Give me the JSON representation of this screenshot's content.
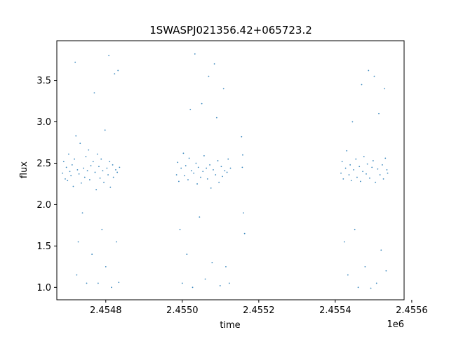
{
  "chart_data": {
    "type": "scatter",
    "title": "1SWASPJ021356.42+065723.2",
    "xlabel": "time",
    "ylabel": "flux",
    "x_offset_label": "1e6",
    "xlim": [
      2454672,
      2455580
    ],
    "ylim": [
      0.85,
      3.98
    ],
    "x_ticks": [
      2454800,
      2455000,
      2455200,
      2455400,
      2455600
    ],
    "x_tick_labels": [
      "2.4548",
      "2.4550",
      "2.4552",
      "2.4554",
      "2.4556"
    ],
    "y_ticks": [
      1.0,
      1.5,
      2.0,
      2.5,
      3.0,
      3.5
    ],
    "y_tick_labels": [
      "1.0",
      "1.5",
      "2.0",
      "2.5",
      "3.0",
      "3.5"
    ],
    "grid": false,
    "marker_color": "#1f77b4",
    "series": [
      {
        "points": [
          [
            2454687,
            2.38
          ],
          [
            2454690,
            2.52
          ],
          [
            2454694,
            2.31
          ],
          [
            2454697,
            2.45
          ],
          [
            2454700,
            2.29
          ],
          [
            2454703,
            2.61
          ],
          [
            2454706,
            2.4
          ],
          [
            2454709,
            2.35
          ],
          [
            2454712,
            2.48
          ],
          [
            2454715,
            2.22
          ],
          [
            2454718,
            2.55
          ],
          [
            2454720,
            3.72
          ],
          [
            2454722,
            2.83
          ],
          [
            2454724,
            1.15
          ],
          [
            2454726,
            2.42
          ],
          [
            2454728,
            1.55
          ],
          [
            2454730,
            2.37
          ],
          [
            2454733,
            2.74
          ],
          [
            2454736,
            2.26
          ],
          [
            2454739,
            1.9
          ],
          [
            2454742,
            2.44
          ],
          [
            2454745,
            2.33
          ],
          [
            2454748,
            2.58
          ],
          [
            2454750,
            1.05
          ],
          [
            2454752,
            2.41
          ],
          [
            2454755,
            2.66
          ],
          [
            2454758,
            2.3
          ],
          [
            2454761,
            2.47
          ],
          [
            2454764,
            1.4
          ],
          [
            2454767,
            2.52
          ],
          [
            2454770,
            3.35
          ],
          [
            2454772,
            2.39
          ],
          [
            2454775,
            2.18
          ],
          [
            2454778,
            2.61
          ],
          [
            2454780,
            1.05
          ],
          [
            2454782,
            2.46
          ],
          [
            2454785,
            2.32
          ],
          [
            2454788,
            2.55
          ],
          [
            2454790,
            1.7
          ],
          [
            2454792,
            2.41
          ],
          [
            2454795,
            2.27
          ],
          [
            2454798,
            2.9
          ],
          [
            2454800,
            1.25
          ],
          [
            2454803,
            2.44
          ],
          [
            2454806,
            2.36
          ],
          [
            2454808,
            3.8
          ],
          [
            2454810,
            2.52
          ],
          [
            2454812,
            2.21
          ],
          [
            2454815,
            1.0
          ],
          [
            2454818,
            2.48
          ],
          [
            2454820,
            2.33
          ],
          [
            2454823,
            3.58
          ],
          [
            2454826,
            2.42
          ],
          [
            2454828,
            1.55
          ],
          [
            2454830,
            2.39
          ],
          [
            2454832,
            3.62
          ],
          [
            2454834,
            1.06
          ],
          [
            2454836,
            2.45
          ],
          [
            2454985,
            2.36
          ],
          [
            2454988,
            2.51
          ],
          [
            2454991,
            2.28
          ],
          [
            2454994,
            1.7
          ],
          [
            2454997,
            2.44
          ],
          [
            2455000,
            1.05
          ],
          [
            2455003,
            2.62
          ],
          [
            2455006,
            2.35
          ],
          [
            2455009,
            2.47
          ],
          [
            2455012,
            1.4
          ],
          [
            2455015,
            2.3
          ],
          [
            2455018,
            2.56
          ],
          [
            2455021,
            3.15
          ],
          [
            2455024,
            2.41
          ],
          [
            2455027,
            1.0
          ],
          [
            2455030,
            2.38
          ],
          [
            2455033,
            3.82
          ],
          [
            2455036,
            2.5
          ],
          [
            2455039,
            2.25
          ],
          [
            2455042,
            2.45
          ],
          [
            2455045,
            1.85
          ],
          [
            2455048,
            2.33
          ],
          [
            2455051,
            3.22
          ],
          [
            2455054,
            2.4
          ],
          [
            2455057,
            2.59
          ],
          [
            2455060,
            1.1
          ],
          [
            2455063,
            2.44
          ],
          [
            2455066,
            2.31
          ],
          [
            2455069,
            3.55
          ],
          [
            2455072,
            2.48
          ],
          [
            2455075,
            2.2
          ],
          [
            2455078,
            1.3
          ],
          [
            2455081,
            2.42
          ],
          [
            2455084,
            3.7
          ],
          [
            2455087,
            2.36
          ],
          [
            2455090,
            3.05
          ],
          [
            2455093,
            2.53
          ],
          [
            2455096,
            2.27
          ],
          [
            2455099,
            1.02
          ],
          [
            2455102,
            2.46
          ],
          [
            2455105,
            2.34
          ],
          [
            2455108,
            3.4
          ],
          [
            2455111,
            2.41
          ],
          [
            2455114,
            1.25
          ],
          [
            2455117,
            2.39
          ],
          [
            2455120,
            2.55
          ],
          [
            2455123,
            1.05
          ],
          [
            2455126,
            2.44
          ],
          [
            2455155,
            2.82
          ],
          [
            2455157,
            2.45
          ],
          [
            2455158,
            2.6
          ],
          [
            2455160,
            1.9
          ],
          [
            2455163,
            1.65
          ],
          [
            2455415,
            2.38
          ],
          [
            2455418,
            2.52
          ],
          [
            2455421,
            2.31
          ],
          [
            2455424,
            1.55
          ],
          [
            2455427,
            2.44
          ],
          [
            2455430,
            2.65
          ],
          [
            2455433,
            1.15
          ],
          [
            2455436,
            2.36
          ],
          [
            2455439,
            2.48
          ],
          [
            2455442,
            2.29
          ],
          [
            2455445,
            3.0
          ],
          [
            2455448,
            2.42
          ],
          [
            2455451,
            1.7
          ],
          [
            2455454,
            2.55
          ],
          [
            2455457,
            2.33
          ],
          [
            2455460,
            1.0
          ],
          [
            2455463,
            2.46
          ],
          [
            2455466,
            2.28
          ],
          [
            2455469,
            3.45
          ],
          [
            2455472,
            2.4
          ],
          [
            2455475,
            2.58
          ],
          [
            2455478,
            1.25
          ],
          [
            2455481,
            2.37
          ],
          [
            2455484,
            2.49
          ],
          [
            2455487,
            3.62
          ],
          [
            2455490,
            2.32
          ],
          [
            2455493,
            0.99
          ],
          [
            2455496,
            2.45
          ],
          [
            2455499,
            2.53
          ],
          [
            2455502,
            3.55
          ],
          [
            2455505,
            2.27
          ],
          [
            2455508,
            1.05
          ],
          [
            2455511,
            2.43
          ],
          [
            2455514,
            3.1
          ],
          [
            2455517,
            2.36
          ],
          [
            2455520,
            1.45
          ],
          [
            2455523,
            2.48
          ],
          [
            2455526,
            2.31
          ],
          [
            2455529,
            3.4
          ],
          [
            2455531,
            2.56
          ],
          [
            2455533,
            1.2
          ],
          [
            2455535,
            2.42
          ],
          [
            2455537,
            2.38
          ]
        ]
      }
    ]
  }
}
